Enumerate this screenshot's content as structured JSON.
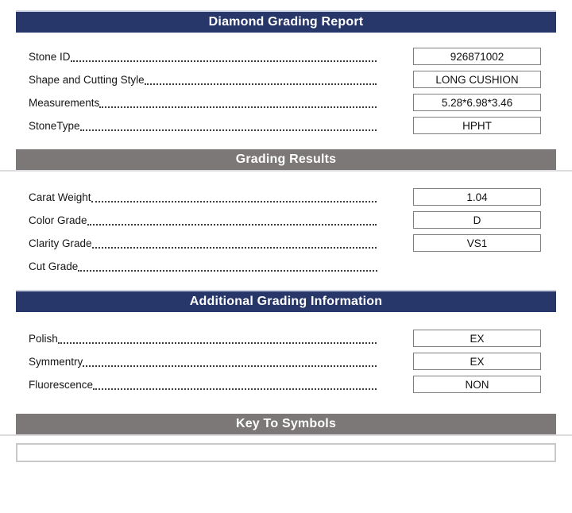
{
  "report": {
    "sections": [
      {
        "title": "Diamond Grading Report",
        "style": "navy",
        "fields": [
          {
            "label": "Stone ID",
            "value": "926871002"
          },
          {
            "label": "Shape and Cutting Style",
            "value": "LONG CUSHION"
          },
          {
            "label": "Measurements",
            "value": "5.28*6.98*3.46"
          },
          {
            "label": "StoneType",
            "value": "HPHT"
          }
        ]
      },
      {
        "title": "Grading Results",
        "style": "gray",
        "fields": [
          {
            "label": "Carat Weight",
            "value": "1.04"
          },
          {
            "label": "Color Grade",
            "value": "D"
          },
          {
            "label": "Clarity Grade",
            "value": "VS1"
          },
          {
            "label": "Cut Grade",
            "value": null
          }
        ]
      },
      {
        "title": "Additional Grading Information",
        "style": "navy",
        "fields": [
          {
            "label": "Polish",
            "value": "EX"
          },
          {
            "label": "Symmentry",
            "value": "EX"
          },
          {
            "label": "Fluorescence",
            "value": "NON"
          }
        ]
      }
    ],
    "key_to_symbols": {
      "title": "Key To Symbols",
      "style": "gray",
      "content": ""
    }
  },
  "colors": {
    "navy_header": "#283769",
    "gray_header": "#7b7877",
    "header_text": "#ffffff",
    "value_box_border": "#7e7e7e",
    "symbols_panel_border": "#c9c9c9",
    "rule_line": "#dcdcde"
  }
}
